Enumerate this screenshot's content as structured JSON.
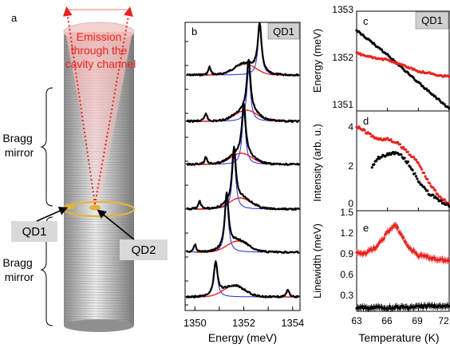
{
  "panel_a": {
    "letter": "a",
    "emission_lines": [
      "Emission",
      "through the",
      "cavity channel"
    ],
    "bragg_top": [
      "Bragg",
      "mirror"
    ],
    "bragg_bottom": [
      "Bragg",
      "mirror"
    ],
    "qd1_label": "QD1",
    "qd2_label": "QD2",
    "colors": {
      "emission": "#e8231f",
      "qd": "#e3b33a",
      "pillar": "#9a9a9a",
      "label_box": "#d9d9d9"
    }
  },
  "panel_b": {
    "letter": "b",
    "badge": "QD1",
    "xlabel": "Energy (meV)",
    "xticks": [
      "1350",
      "1352",
      "1354"
    ]
  },
  "panel_c": {
    "letter": "c",
    "badge": "QD1",
    "ylabel": "Energy (meV)",
    "yticks": [
      "1353",
      "1352",
      "1351"
    ]
  },
  "panel_d": {
    "letter": "d",
    "ylabel": "Intensity (arb. u.)",
    "yticks": [
      "4",
      "2",
      "0"
    ]
  },
  "panel_e": {
    "letter": "e",
    "ylabel": "Linewidth (meV)",
    "yticks": [
      "1.5",
      "1.2",
      "0.9",
      "0.6",
      "0.3"
    ],
    "xlabel": "Temperature (K)",
    "xticks": [
      "63",
      "66",
      "69",
      "72"
    ]
  },
  "chart_data": [
    {
      "type": "line",
      "panel": "b",
      "xlabel": "Energy (meV)",
      "ylabel": "",
      "xlim": [
        1349.6,
        1354.3
      ],
      "offset_spectra": [
        {
          "qd_peak_meV": 1352.65,
          "cavity_peak_meV": 1352.05,
          "qd_amplitude": 1.0
        },
        {
          "qd_peak_meV": 1352.2,
          "cavity_peak_meV": 1352.1,
          "qd_amplitude": 1.0
        },
        {
          "qd_peak_meV": 1352.0,
          "cavity_peak_meV": 1351.9,
          "qd_amplitude": 1.0
        },
        {
          "qd_peak_meV": 1351.6,
          "cavity_peak_meV": 1351.85,
          "qd_amplitude": 1.0
        },
        {
          "qd_peak_meV": 1351.3,
          "cavity_peak_meV": 1351.75,
          "qd_amplitude": 1.0
        },
        {
          "qd_peak_meV": 1350.85,
          "cavity_peak_meV": 1351.6,
          "qd_amplitude": 1.0
        }
      ],
      "series": [
        {
          "role": "data",
          "color": "#000000"
        },
        {
          "role": "cavity fit",
          "color": "#e8231f"
        },
        {
          "role": "QD fit",
          "color": "#1f2bd6"
        }
      ]
    },
    {
      "type": "line",
      "panel": "c",
      "xlabel": "Temperature (K)",
      "ylabel": "Energy (meV)",
      "ylim": [
        1350.9,
        1353.0
      ],
      "xlim": [
        63,
        72
      ],
      "series": [
        {
          "color": "#000000",
          "x": [
            63,
            66,
            69,
            72
          ],
          "y": [
            1352.6,
            1352.08,
            1351.5,
            1350.95
          ]
        },
        {
          "color": "#e8231f",
          "x": [
            63,
            64,
            65,
            66,
            67,
            68,
            69,
            70,
            71,
            72
          ],
          "y": [
            1352.12,
            1352.05,
            1352.0,
            1351.98,
            1351.9,
            1351.82,
            1351.73,
            1351.7,
            1351.65,
            1351.62
          ]
        }
      ]
    },
    {
      "type": "line",
      "panel": "d",
      "xlabel": "Temperature (K)",
      "ylabel": "Intensity (arb. u.)",
      "ylim": [
        0,
        4.6
      ],
      "xlim": [
        63,
        72
      ],
      "series": [
        {
          "color": "#e8231f",
          "x": [
            63,
            64,
            65,
            66,
            67,
            68,
            69,
            70,
            71,
            72
          ],
          "y": [
            3.9,
            3.6,
            3.3,
            3.3,
            3.1,
            2.7,
            2.2,
            1.3,
            0.7,
            0.3
          ]
        },
        {
          "color": "#000000",
          "x": [
            64.5,
            65,
            66,
            67,
            68,
            69,
            70,
            71,
            72
          ],
          "y": [
            2.0,
            2.4,
            2.6,
            2.7,
            2.2,
            1.4,
            0.8,
            0.5,
            0.2
          ]
        }
      ]
    },
    {
      "type": "line",
      "panel": "e",
      "xlabel": "Temperature (K)",
      "ylabel": "Linewidth (meV)",
      "ylim": [
        0.1,
        1.5
      ],
      "xlim": [
        63,
        72
      ],
      "series": [
        {
          "color": "#e8231f",
          "x": [
            63,
            64,
            65,
            66,
            66.7,
            67,
            68,
            69,
            70,
            71,
            72
          ],
          "y": [
            0.9,
            0.92,
            1.0,
            1.2,
            1.3,
            1.25,
            1.0,
            0.88,
            0.85,
            0.82,
            0.8
          ]
        },
        {
          "color": "#000000",
          "x": [
            63,
            64,
            65,
            66,
            67,
            68,
            69,
            70,
            71,
            72
          ],
          "y": [
            0.15,
            0.15,
            0.15,
            0.15,
            0.16,
            0.15,
            0.16,
            0.17,
            0.18,
            0.17
          ]
        }
      ]
    }
  ]
}
